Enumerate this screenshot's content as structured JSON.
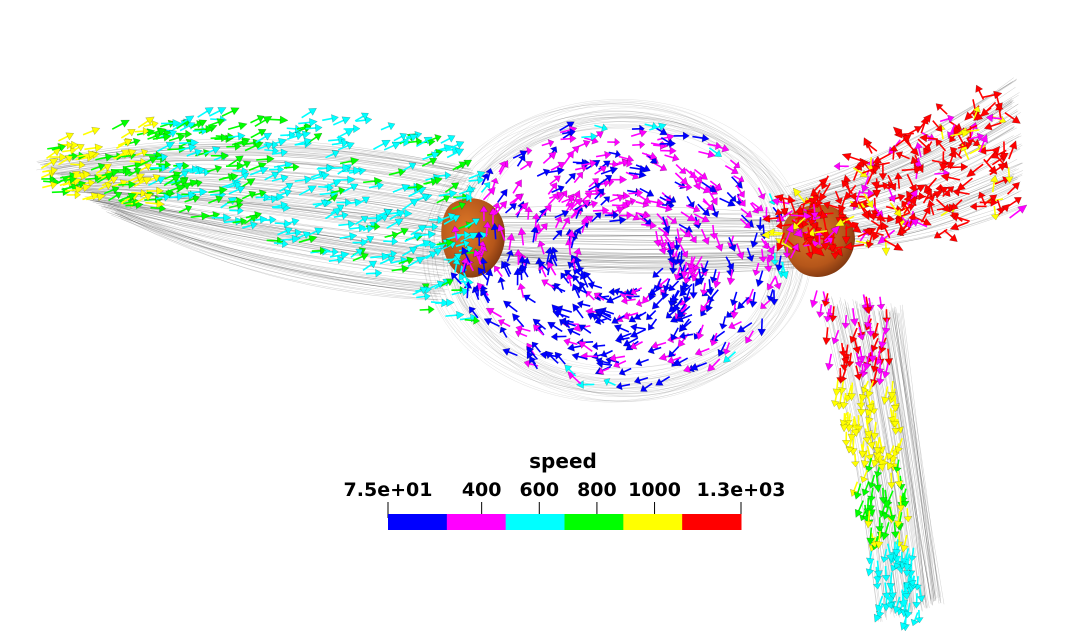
{
  "visualization": {
    "type": "vector-glyph-flow-field",
    "background": "#ffffff",
    "body_color": "#c8651a",
    "mesh_color": "#000000"
  },
  "colorbar": {
    "title": "speed",
    "ticks": [
      "7.5e+01",
      "400",
      "600",
      "800",
      "1000",
      "1.3e+03"
    ],
    "tick_values": [
      75,
      400,
      600,
      800,
      1000,
      1300
    ],
    "range": [
      75,
      1300
    ],
    "colors": [
      "#0000ff",
      "#ff00ff",
      "#00ffff",
      "#00ff00",
      "#ffff00",
      "#ff0000"
    ]
  }
}
